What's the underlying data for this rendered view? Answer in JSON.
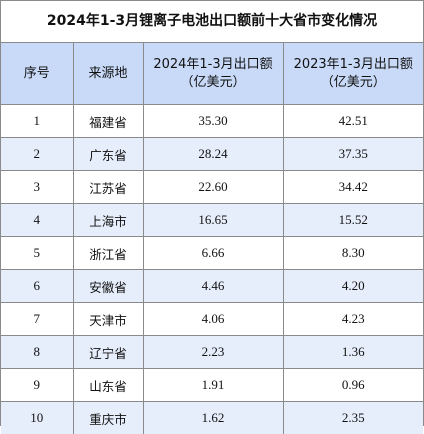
{
  "title": "2024年1-3月锂离子电池出口额前十大省市变化情况",
  "headers": {
    "index": "序号",
    "source": "来源地",
    "y2024": [
      "2024年1-3月出口额",
      "（亿美元）"
    ],
    "y2023": [
      "2023年1-3月出口额",
      "（亿美元）"
    ]
  },
  "rows": [
    {
      "index": "1",
      "source": "福建省",
      "y2024": "35.30",
      "y2023": "42.51"
    },
    {
      "index": "2",
      "source": "广东省",
      "y2024": "28.24",
      "y2023": "37.35"
    },
    {
      "index": "3",
      "source": "江苏省",
      "y2024": "22.60",
      "y2023": "34.42"
    },
    {
      "index": "4",
      "source": "上海市",
      "y2024": "16.65",
      "y2023": "15.52"
    },
    {
      "index": "5",
      "source": "浙江省",
      "y2024": "6.66",
      "y2023": "8.30"
    },
    {
      "index": "6",
      "source": "安徽省",
      "y2024": "4.46",
      "y2023": "4.20"
    },
    {
      "index": "7",
      "source": "天津市",
      "y2024": "4.06",
      "y2023": "4.23"
    },
    {
      "index": "8",
      "source": "辽宁省",
      "y2024": "2.23",
      "y2023": "1.36"
    },
    {
      "index": "9",
      "source": "山东省",
      "y2024": "1.91",
      "y2023": "0.96"
    },
    {
      "index": "10",
      "source": "重庆市",
      "y2024": "1.62",
      "y2023": "2.35"
    }
  ],
  "colors": {
    "header_bg": "#c9daf8",
    "stripe_bg": "#e6eefb",
    "border": "#8a8a8a"
  }
}
